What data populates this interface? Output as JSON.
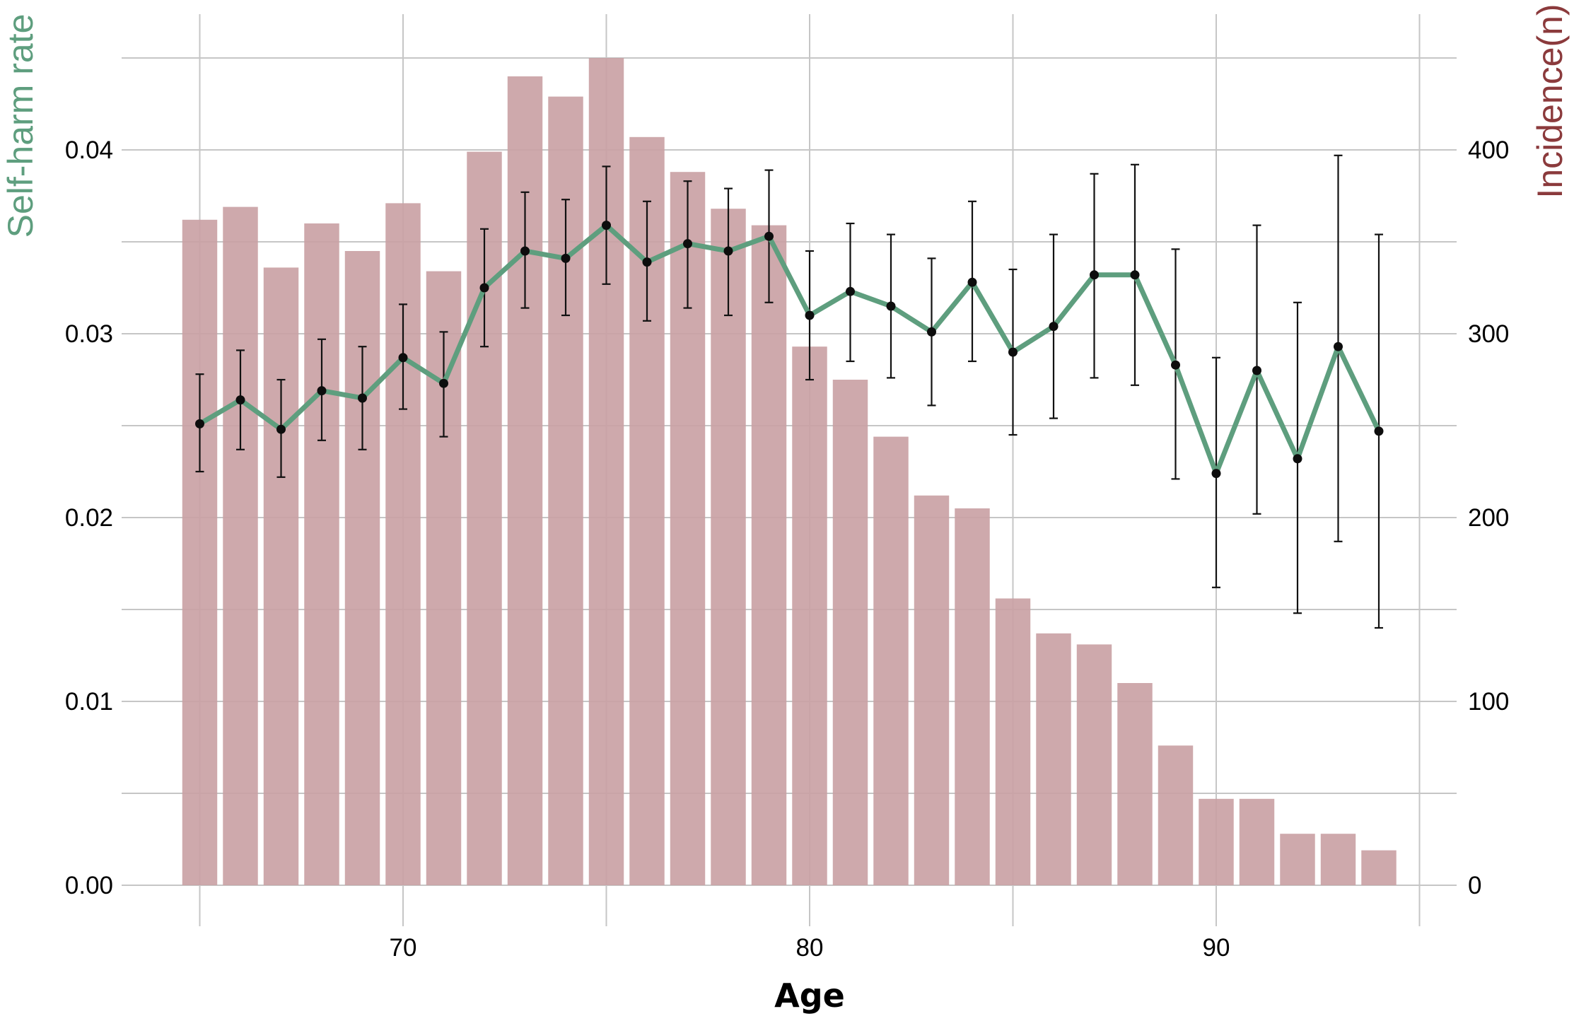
{
  "chart_data": {
    "type": "bar",
    "xlabel": "Age",
    "ylabel_left": "Self-harm rate",
    "ylabel_right": "Incidence(n)",
    "colors": {
      "bars": "#c9a0a3",
      "line": "#5e9e7e",
      "points": "#0d0d0d",
      "errorbars": "#111111",
      "ylabel_left": "#5e9e7e",
      "ylabel_right": "#8b3a3c",
      "grid": "#c6c6c6"
    },
    "grid": true,
    "xlim": [
      63,
      95
    ],
    "ylim_left": [
      0,
      0.0482
    ],
    "ylim_right": [
      0,
      482
    ],
    "x_ticks": [
      70,
      80,
      90
    ],
    "x_tick_labels": [
      "70",
      "80",
      "90"
    ],
    "y_left_ticks": [
      0,
      0.01,
      0.02,
      0.03,
      0.04
    ],
    "y_left_tick_labels": [
      "0.00",
      "0.01",
      "0.02",
      "0.03",
      "0.04"
    ],
    "y_right_ticks": [
      0,
      100,
      200,
      300,
      400
    ],
    "y_right_tick_labels": [
      "0",
      "100",
      "200",
      "300",
      "400"
    ],
    "ages": [
      65,
      66,
      67,
      68,
      69,
      70,
      71,
      72,
      73,
      74,
      75,
      76,
      77,
      78,
      79,
      80,
      81,
      82,
      83,
      84,
      85,
      86,
      87,
      88,
      89,
      90,
      91,
      92,
      93,
      94
    ],
    "series": [
      {
        "axis": "right",
        "type": "bar",
        "values": [
          362,
          369,
          336,
          360,
          345,
          371,
          334,
          399,
          440,
          429,
          450,
          407,
          388,
          368,
          359,
          293,
          275,
          244,
          212,
          205,
          156,
          137,
          131,
          110,
          76,
          47,
          47,
          28,
          28,
          19
        ]
      },
      {
        "axis": "left",
        "type": "line",
        "values": [
          0.0251,
          0.0264,
          0.0248,
          0.0269,
          0.0265,
          0.0287,
          0.0273,
          0.0325,
          0.0345,
          0.0341,
          0.0359,
          0.0339,
          0.0349,
          0.0345,
          0.0353,
          0.031,
          0.0323,
          0.0315,
          0.0301,
          0.0328,
          0.029,
          0.0304,
          0.0332,
          0.0332,
          0.0283,
          0.0224,
          0.028,
          0.0232,
          0.0293,
          0.0247
        ],
        "lower": [
          0.0225,
          0.0237,
          0.0222,
          0.0242,
          0.0237,
          0.0259,
          0.0244,
          0.0293,
          0.0314,
          0.031,
          0.0327,
          0.0307,
          0.0314,
          0.031,
          0.0317,
          0.0275,
          0.0285,
          0.0276,
          0.0261,
          0.0285,
          0.0245,
          0.0254,
          0.0276,
          0.0272,
          0.0221,
          0.0162,
          0.0202,
          0.0148,
          0.0187,
          0.014
        ],
        "upper": [
          0.0278,
          0.0291,
          0.0275,
          0.0297,
          0.0293,
          0.0316,
          0.0301,
          0.0357,
          0.0377,
          0.0373,
          0.0391,
          0.0372,
          0.0383,
          0.0379,
          0.0389,
          0.0345,
          0.036,
          0.0354,
          0.0341,
          0.0372,
          0.0335,
          0.0354,
          0.0387,
          0.0392,
          0.0346,
          0.0287,
          0.0359,
          0.0317,
          0.0397,
          0.0354
        ]
      }
    ]
  }
}
